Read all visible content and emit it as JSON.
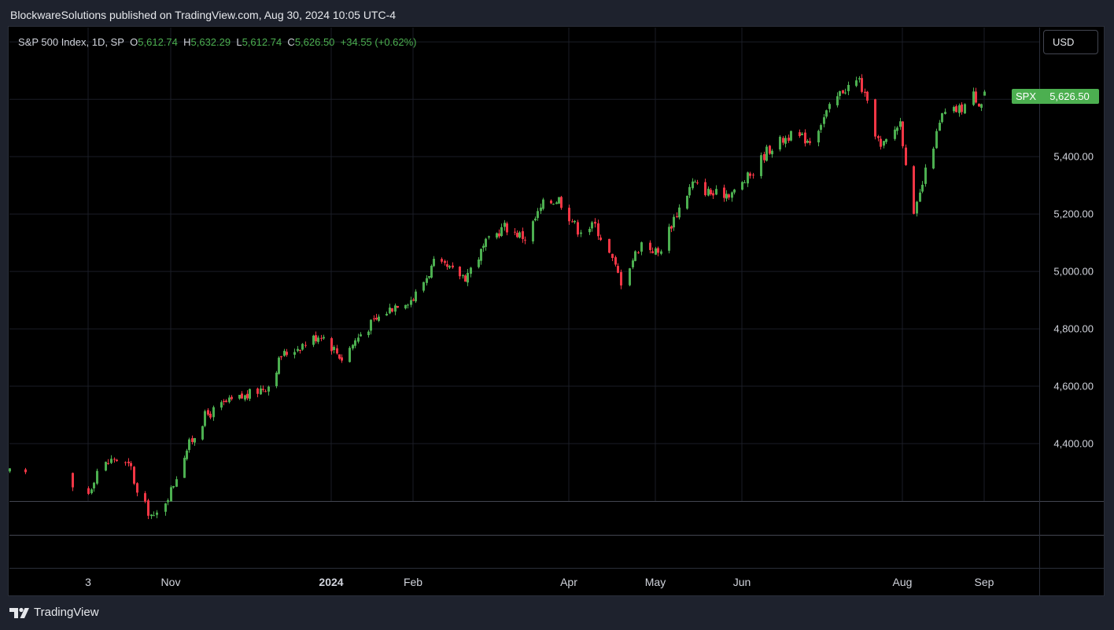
{
  "header": {
    "publisher": "BlockwareSolutions published on TradingView.com, Aug 30, 2024 10:05 UTC-4"
  },
  "legend": {
    "symbol": "S&P 500 Index, 1D, SP",
    "open_label": "O",
    "open": "5,612.74",
    "high_label": "H",
    "high": "5,632.29",
    "low_label": "L",
    "low": "5,612.74",
    "close_label": "C",
    "close": "5,626.50",
    "change": "+34.55 (+0.62%)"
  },
  "currency_button": "USD",
  "last_price": {
    "symbol": "SPX",
    "value": "5,626.50"
  },
  "footer": {
    "brand": "TradingView"
  },
  "colors": {
    "up": "#4caf50",
    "down": "#f23645",
    "background": "#000000",
    "chrome": "#1e222d"
  },
  "chart_data": {
    "type": "candlestick",
    "symbol": "SPX",
    "y_ticks": [
      "4,400.00",
      "4,600.00",
      "4,800.00",
      "5,000.00",
      "5,200.00",
      "5,400.00"
    ],
    "x_ticks": [
      "3",
      "Nov",
      "2024",
      "Feb",
      "Apr",
      "May",
      "Jun",
      "Aug",
      "Sep"
    ],
    "y_range": [
      4200,
      5850
    ],
    "grid": true,
    "series": [
      {
        "date": "2023-09-28",
        "close": 4299
      },
      {
        "date": "2023-10-03",
        "close": 4229
      },
      {
        "date": "2023-10-06",
        "close": 4308
      },
      {
        "date": "2023-10-12",
        "close": 4349
      },
      {
        "date": "2023-10-18",
        "close": 4314
      },
      {
        "date": "2023-10-20",
        "close": 4224
      },
      {
        "date": "2023-10-26",
        "close": 4137
      },
      {
        "date": "2023-11-01",
        "close": 4237
      },
      {
        "date": "2023-11-06",
        "close": 4365
      },
      {
        "date": "2023-11-14",
        "close": 4495
      },
      {
        "date": "2023-11-21",
        "close": 4538
      },
      {
        "date": "2023-11-30",
        "close": 4567
      },
      {
        "date": "2023-12-08",
        "close": 4604
      },
      {
        "date": "2023-12-13",
        "close": 4707
      },
      {
        "date": "2023-12-21",
        "close": 4746
      },
      {
        "date": "2023-12-28",
        "close": 4783
      },
      {
        "date": "2024-01-05",
        "close": 4697
      },
      {
        "date": "2024-01-12",
        "close": 4784
      },
      {
        "date": "2024-01-19",
        "close": 4840
      },
      {
        "date": "2024-01-26",
        "close": 4891
      },
      {
        "date": "2024-02-01",
        "close": 4906
      },
      {
        "date": "2024-02-09",
        "close": 5027
      },
      {
        "date": "2024-02-21",
        "close": 4982
      },
      {
        "date": "2024-02-29",
        "close": 5096
      },
      {
        "date": "2024-03-07",
        "close": 5157
      },
      {
        "date": "2024-03-15",
        "close": 5117
      },
      {
        "date": "2024-03-22",
        "close": 5234
      },
      {
        "date": "2024-03-28",
        "close": 5254
      },
      {
        "date": "2024-04-04",
        "close": 5147
      },
      {
        "date": "2024-04-10",
        "close": 5160
      },
      {
        "date": "2024-04-15",
        "close": 5061
      },
      {
        "date": "2024-04-19",
        "close": 4967
      },
      {
        "date": "2024-04-26",
        "close": 5100
      },
      {
        "date": "2024-05-02",
        "close": 5064
      },
      {
        "date": "2024-05-08",
        "close": 5187
      },
      {
        "date": "2024-05-15",
        "close": 5308
      },
      {
        "date": "2024-05-23",
        "close": 5268
      },
      {
        "date": "2024-05-31",
        "close": 5277
      },
      {
        "date": "2024-06-07",
        "close": 5347
      },
      {
        "date": "2024-06-12",
        "close": 5421
      },
      {
        "date": "2024-06-20",
        "close": 5473
      },
      {
        "date": "2024-06-28",
        "close": 5460
      },
      {
        "date": "2024-07-05",
        "close": 5567
      },
      {
        "date": "2024-07-10",
        "close": 5633
      },
      {
        "date": "2024-07-16",
        "close": 5667
      },
      {
        "date": "2024-07-24",
        "close": 5427
      },
      {
        "date": "2024-07-31",
        "close": 5522
      },
      {
        "date": "2024-08-05",
        "close": 5186
      },
      {
        "date": "2024-08-09",
        "close": 5344
      },
      {
        "date": "2024-08-15",
        "close": 5543
      },
      {
        "date": "2024-08-22",
        "close": 5570
      },
      {
        "date": "2024-08-26",
        "close": 5616
      },
      {
        "date": "2024-08-28",
        "close": 5592
      },
      {
        "date": "2024-08-29",
        "close": 5592
      },
      {
        "date": "2024-08-30",
        "close": 5626.5
      }
    ]
  }
}
